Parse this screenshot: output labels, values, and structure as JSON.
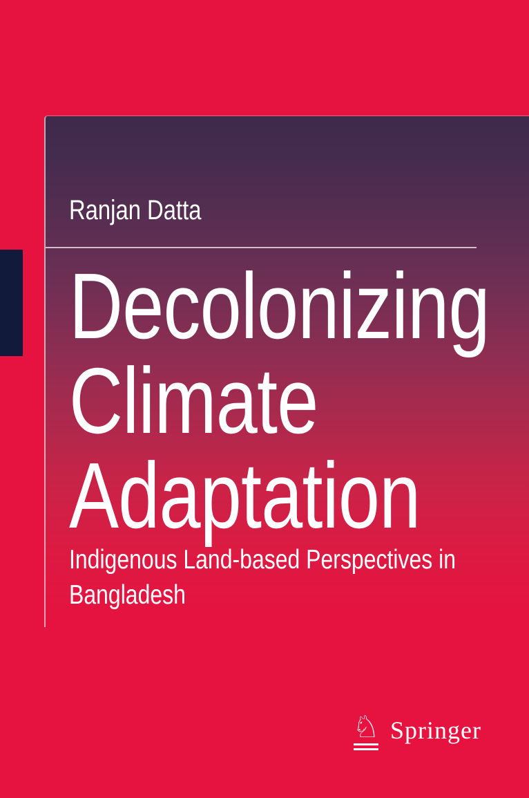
{
  "cover": {
    "author": "Ranjan Datta",
    "title_lines": [
      "Decolonizing",
      "Climate",
      "Adaptation"
    ],
    "subtitle_lines": [
      "Indigenous Land-based Perspectives in",
      "Bangladesh"
    ],
    "publisher": {
      "name": "Springer",
      "logo_icon": "springer-horse-knight-icon",
      "knight_glyph": "♘"
    },
    "colors": {
      "background_red": "#e61240",
      "panel_gradient_top": "#3e2a4b",
      "panel_gradient_bottom": "#e61240",
      "spine_tab_navy": "#111a3b",
      "text_white": "#ffffff"
    }
  }
}
